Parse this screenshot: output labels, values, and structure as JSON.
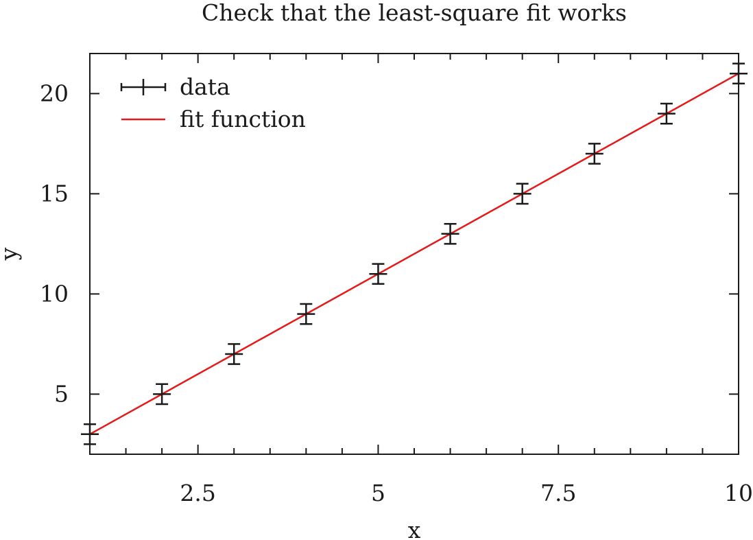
{
  "chart_data": {
    "type": "scatter",
    "title": "Check that the least-square fit works",
    "xlabel": "x",
    "ylabel": "y",
    "xlim": [
      1,
      10
    ],
    "ylim": [
      2,
      22
    ],
    "xticks": [
      1.5,
      2,
      2.5,
      3,
      3.5,
      4,
      4.5,
      5,
      5.5,
      6,
      6.5,
      7,
      7.5,
      8,
      8.5,
      9,
      9.5,
      10
    ],
    "xtick_labels": [
      {
        "value": 2.5,
        "label": "2.5"
      },
      {
        "value": 5,
        "label": "5"
      },
      {
        "value": 7.5,
        "label": "7.5"
      },
      {
        "value": 10,
        "label": "10"
      }
    ],
    "yticks": [
      5,
      10,
      15,
      20
    ],
    "ytick_labels": [
      {
        "value": 5,
        "label": "5"
      },
      {
        "value": 10,
        "label": "10"
      },
      {
        "value": 15,
        "label": "15"
      },
      {
        "value": 20,
        "label": "20"
      }
    ],
    "grid": false,
    "legend_position": "top-left",
    "series": [
      {
        "name": "data",
        "kind": "errorbar",
        "color": "#1a1a1a",
        "x": [
          1,
          2,
          3,
          4,
          5,
          6,
          7,
          8,
          9,
          10
        ],
        "y": [
          3,
          5,
          7,
          9,
          11,
          13,
          15,
          17,
          19,
          21
        ],
        "yerr": [
          0.5,
          0.5,
          0.5,
          0.5,
          0.5,
          0.5,
          0.5,
          0.5,
          0.5,
          0.5
        ]
      },
      {
        "name": "fit function",
        "kind": "line",
        "color": "#e41a1c",
        "x": [
          1,
          10
        ],
        "y": [
          3,
          21
        ]
      }
    ]
  }
}
